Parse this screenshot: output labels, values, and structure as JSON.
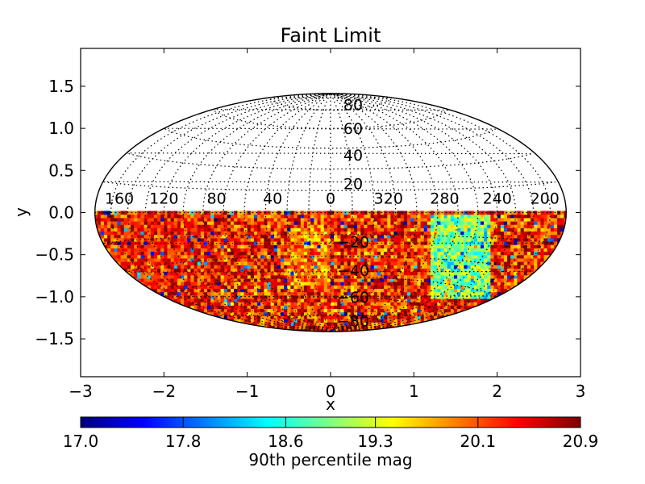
{
  "chart_data": {
    "type": "heatmap",
    "projection": "hammer-aitoff",
    "title": "Faint Limit",
    "xlabel": "x",
    "ylabel": "y",
    "xlim": [
      -3,
      3
    ],
    "ylim": [
      -1.95,
      1.95
    ],
    "x_ticks": [
      "−3",
      "−2",
      "−1",
      "0",
      "1",
      "2",
      "3"
    ],
    "x_tick_values": [
      -3,
      -2,
      -1,
      0,
      1,
      2,
      3
    ],
    "y_ticks": [
      "1.5",
      "1.0",
      "0.5",
      "0.0",
      "−0.5",
      "−1.0",
      "−1.5"
    ],
    "y_tick_values": [
      1.5,
      1.0,
      0.5,
      0.0,
      -0.5,
      -1.0,
      -1.5
    ],
    "longitude_labels": [
      "200",
      "240",
      "280",
      "320",
      "0",
      "40",
      "80",
      "120",
      "160"
    ],
    "longitude_values": [
      200,
      240,
      280,
      320,
      0,
      40,
      80,
      120,
      160
    ],
    "latitude_labels_north": [
      "80",
      "60",
      "40",
      "20"
    ],
    "latitude_values_north": [
      80,
      60,
      40,
      20
    ],
    "latitude_labels_south": [
      "−20",
      "−40",
      "−60",
      "−80"
    ],
    "latitude_values_south": [
      -20,
      -40,
      -60,
      -80
    ],
    "data_coverage": "southern hemisphere only (latitude ≤ 0)",
    "colormap": "jet",
    "colorbar": {
      "label": "90th percentile mag",
      "range": [
        17.0,
        20.9
      ],
      "ticks": [
        "17.0",
        "17.8",
        "18.6",
        "19.3",
        "20.1",
        "20.9"
      ],
      "tick_values": [
        17.0,
        17.8,
        18.6,
        19.3,
        20.1,
        20.9
      ],
      "orientation": "horizontal"
    },
    "features": [
      {
        "lon_range": [
          245,
          290
        ],
        "lat_range": [
          -60,
          0
        ],
        "value": 18.6,
        "note": "faint-limit low band (cyan/blue)"
      },
      {
        "lon_range": [
          0,
          30
        ],
        "lat_range": [
          -50,
          -10
        ],
        "value": 19.8,
        "note": "mixed band"
      },
      {
        "lon_range": [
          80,
          160
        ],
        "lat_range": [
          -90,
          0
        ],
        "value": 20.3,
        "note": "predominantly red"
      }
    ]
  }
}
